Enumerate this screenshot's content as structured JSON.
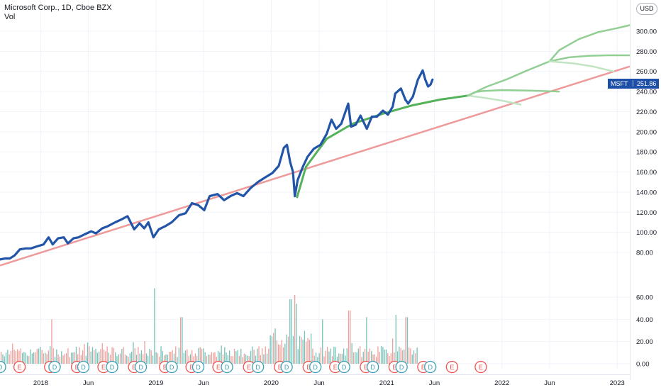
{
  "header": {
    "title": "Microsoft Corp., 1D, Cboe BZX",
    "volume_label": "Vol"
  },
  "currency_button": "USD",
  "price_tag": {
    "symbol": "MSFT",
    "value": "251.86"
  },
  "colors": {
    "price": "#2254a8",
    "trendline": "#ee9a9a",
    "arc_dark": "#55b25a",
    "arc_mid": "#93cf95",
    "arc_light": "#c2e4c3",
    "vol_up": "#5eb8ad",
    "vol_down": "#ef8f8b",
    "earnings": "#ef5350",
    "dividend": "#3a9fb8"
  },
  "chart_data": {
    "type": "line",
    "x_tick_labels": [
      "2018",
      "Jun",
      "2019",
      "Jun",
      "2020",
      "Jun",
      "2021",
      "Jun",
      "2022",
      "Jun",
      "2023"
    ],
    "x_tick_dates": [
      "2018-01-01",
      "2018-06-01",
      "2019-01-01",
      "2019-06-01",
      "2020-01-01",
      "2020-06-01",
      "2021-01-01",
      "2021-06-01",
      "2022-01-01",
      "2022-06-01",
      "2023-01-01"
    ],
    "xlim": [
      "2017-08-25",
      "2023-02-10"
    ],
    "price_axis": {
      "ticks": [
        80,
        100,
        120,
        140,
        160,
        180,
        200,
        220,
        240,
        260,
        280,
        300
      ],
      "tick_labels": [
        "80.00",
        "100.00",
        "120.00",
        "140.00",
        "160.00",
        "180.00",
        "200.00",
        "220.00",
        "240.00",
        "260.00",
        "280.00",
        "300.00"
      ],
      "ylim": [
        58,
        312
      ]
    },
    "volume_axis": {
      "ticks": [
        0,
        20,
        40,
        60
      ],
      "tick_labels": [
        "0.00",
        "20.00",
        "40.00",
        "60.00"
      ],
      "ylim": [
        -6,
        70
      ]
    },
    "series": [
      {
        "name": "MSFT",
        "points": [
          [
            "2017-08-25",
            73
          ],
          [
            "2017-09-10",
            74
          ],
          [
            "2017-09-25",
            74
          ],
          [
            "2017-10-10",
            77
          ],
          [
            "2017-10-27",
            83
          ],
          [
            "2017-11-15",
            84
          ],
          [
            "2017-12-01",
            84
          ],
          [
            "2017-12-20",
            86
          ],
          [
            "2018-01-10",
            88
          ],
          [
            "2018-01-26",
            95
          ],
          [
            "2018-02-08",
            88
          ],
          [
            "2018-02-25",
            94
          ],
          [
            "2018-03-15",
            95
          ],
          [
            "2018-03-28",
            89
          ],
          [
            "2018-04-15",
            94
          ],
          [
            "2018-05-01",
            95
          ],
          [
            "2018-05-20",
            98
          ],
          [
            "2018-06-10",
            101
          ],
          [
            "2018-06-25",
            99
          ],
          [
            "2018-07-15",
            104
          ],
          [
            "2018-08-01",
            106
          ],
          [
            "2018-08-25",
            110
          ],
          [
            "2018-09-15",
            113
          ],
          [
            "2018-10-03",
            116
          ],
          [
            "2018-10-24",
            103
          ],
          [
            "2018-11-10",
            109
          ],
          [
            "2018-11-25",
            104
          ],
          [
            "2018-12-08",
            110
          ],
          [
            "2018-12-24",
            95
          ],
          [
            "2019-01-10",
            103
          ],
          [
            "2019-01-30",
            106
          ],
          [
            "2019-02-20",
            110
          ],
          [
            "2019-03-15",
            117
          ],
          [
            "2019-04-05",
            119
          ],
          [
            "2019-04-25",
            129
          ],
          [
            "2019-05-15",
            127
          ],
          [
            "2019-06-03",
            122
          ],
          [
            "2019-06-20",
            136
          ],
          [
            "2019-07-15",
            138
          ],
          [
            "2019-08-05",
            132
          ],
          [
            "2019-08-25",
            136
          ],
          [
            "2019-09-15",
            139
          ],
          [
            "2019-10-05",
            136
          ],
          [
            "2019-10-28",
            144
          ],
          [
            "2019-11-20",
            150
          ],
          [
            "2019-12-15",
            155
          ],
          [
            "2020-01-05",
            159
          ],
          [
            "2020-01-25",
            166
          ],
          [
            "2020-02-10",
            184
          ],
          [
            "2020-02-20",
            187
          ],
          [
            "2020-03-01",
            170
          ],
          [
            "2020-03-10",
            160
          ],
          [
            "2020-03-16",
            136
          ],
          [
            "2020-03-25",
            152
          ],
          [
            "2020-04-10",
            165
          ],
          [
            "2020-04-25",
            175
          ],
          [
            "2020-05-15",
            183
          ],
          [
            "2020-06-05",
            187
          ],
          [
            "2020-06-25",
            198
          ],
          [
            "2020-07-10",
            212
          ],
          [
            "2020-07-25",
            203
          ],
          [
            "2020-08-10",
            208
          ],
          [
            "2020-09-01",
            228
          ],
          [
            "2020-09-10",
            205
          ],
          [
            "2020-09-25",
            207
          ],
          [
            "2020-10-10",
            216
          ],
          [
            "2020-10-30",
            203
          ],
          [
            "2020-11-15",
            215
          ],
          [
            "2020-12-01",
            215
          ],
          [
            "2020-12-20",
            221
          ],
          [
            "2021-01-05",
            217
          ],
          [
            "2021-01-20",
            225
          ],
          [
            "2021-01-28",
            238
          ],
          [
            "2021-02-15",
            243
          ],
          [
            "2021-03-01",
            232
          ],
          [
            "2021-03-10",
            228
          ],
          [
            "2021-03-25",
            235
          ],
          [
            "2021-04-10",
            252
          ],
          [
            "2021-04-25",
            261
          ],
          [
            "2021-05-03",
            252
          ],
          [
            "2021-05-12",
            245
          ],
          [
            "2021-05-20",
            247
          ],
          [
            "2021-05-26",
            251.86
          ]
        ]
      }
    ],
    "trendline": [
      [
        "2017-08-25",
        67
      ],
      [
        "2023-02-10",
        265
      ]
    ],
    "arcs": [
      {
        "shade": "dark",
        "points": [
          [
            "2020-03-23",
            135
          ],
          [
            "2020-04-20",
            165
          ],
          [
            "2020-06-25",
            193
          ],
          [
            "2020-09-15",
            208
          ],
          [
            "2020-12-20",
            218
          ],
          [
            "2021-03-20",
            226
          ],
          [
            "2021-06-20",
            232
          ],
          [
            "2021-09-15",
            236
          ]
        ]
      },
      {
        "shade": "mid",
        "points": [
          [
            "2021-09-15",
            236
          ],
          [
            "2021-10-10",
            239.5
          ],
          [
            "2021-11-01",
            240.5
          ],
          [
            "2022-01-01",
            241.5
          ],
          [
            "2022-04-01",
            241
          ],
          [
            "2022-07-01",
            240
          ]
        ]
      },
      {
        "shade": "light",
        "points": [
          [
            "2021-09-15",
            236
          ],
          [
            "2021-11-01",
            234
          ],
          [
            "2022-01-01",
            231
          ],
          [
            "2022-03-01",
            227
          ]
        ]
      },
      {
        "shade": "mid",
        "points": [
          [
            "2021-09-15",
            236
          ],
          [
            "2021-11-15",
            245
          ],
          [
            "2022-01-15",
            252
          ],
          [
            "2022-03-15",
            260
          ],
          [
            "2022-06-01",
            270
          ]
        ]
      },
      {
        "shade": "mid",
        "points": [
          [
            "2022-06-01",
            270
          ],
          [
            "2022-07-01",
            281
          ],
          [
            "2022-09-01",
            292
          ],
          [
            "2022-11-01",
            299
          ],
          [
            "2023-01-01",
            303
          ],
          [
            "2023-02-10",
            306
          ]
        ]
      },
      {
        "shade": "mid",
        "points": [
          [
            "2022-06-01",
            270
          ],
          [
            "2022-08-01",
            274
          ],
          [
            "2022-10-01",
            275.5
          ],
          [
            "2022-12-01",
            276
          ],
          [
            "2023-02-10",
            276
          ]
        ]
      },
      {
        "shade": "light",
        "points": [
          [
            "2022-06-01",
            270
          ],
          [
            "2022-08-15",
            268
          ],
          [
            "2022-10-15",
            265
          ],
          [
            "2022-12-20",
            260
          ]
        ]
      }
    ],
    "volume": {
      "peak_spikes": [
        [
          "2018-02-05",
          40
        ],
        [
          "2018-12-26",
          68
        ],
        [
          "2019-03-22",
          42
        ],
        [
          "2020-03-02",
          58
        ],
        [
          "2020-03-13",
          62
        ],
        [
          "2020-03-18",
          54
        ],
        [
          "2020-06-10",
          40
        ],
        [
          "2020-09-03",
          48
        ],
        [
          "2020-10-27",
          42
        ],
        [
          "2021-01-27",
          44
        ],
        [
          "2021-03-03",
          42
        ],
        [
          "2021-04-28",
          36
        ]
      ]
    },
    "events": [
      {
        "type": "D",
        "date": "2017-08-25"
      },
      {
        "type": "E",
        "date": "2017-10-26"
      },
      {
        "type": "E",
        "date": "2018-01-31"
      },
      {
        "type": "D",
        "date": "2018-02-14"
      },
      {
        "type": "E",
        "date": "2018-04-26"
      },
      {
        "type": "D",
        "date": "2018-05-16"
      },
      {
        "type": "E",
        "date": "2018-07-19"
      },
      {
        "type": "D",
        "date": "2018-08-15"
      },
      {
        "type": "E",
        "date": "2018-10-24"
      },
      {
        "type": "D",
        "date": "2018-11-14"
      },
      {
        "type": "E",
        "date": "2019-01-30"
      },
      {
        "type": "D",
        "date": "2019-02-20"
      },
      {
        "type": "E",
        "date": "2019-04-24"
      },
      {
        "type": "D",
        "date": "2019-05-15"
      },
      {
        "type": "E",
        "date": "2019-07-18"
      },
      {
        "type": "D",
        "date": "2019-08-14"
      },
      {
        "type": "E",
        "date": "2019-10-23"
      },
      {
        "type": "D",
        "date": "2019-11-20"
      },
      {
        "type": "E",
        "date": "2020-01-29"
      },
      {
        "type": "D",
        "date": "2020-02-19"
      },
      {
        "type": "E",
        "date": "2020-04-29"
      },
      {
        "type": "D",
        "date": "2020-05-20"
      },
      {
        "type": "E",
        "date": "2020-07-22"
      },
      {
        "type": "D",
        "date": "2020-08-19"
      },
      {
        "type": "E",
        "date": "2020-10-27"
      },
      {
        "type": "D",
        "date": "2020-11-18"
      },
      {
        "type": "E",
        "date": "2021-01-26"
      },
      {
        "type": "D",
        "date": "2021-02-17"
      },
      {
        "type": "E",
        "date": "2021-04-27"
      },
      {
        "type": "D",
        "date": "2021-05-19"
      },
      {
        "type": "E",
        "date": "2021-07-27"
      },
      {
        "type": "E",
        "date": "2021-10-26"
      }
    ]
  }
}
